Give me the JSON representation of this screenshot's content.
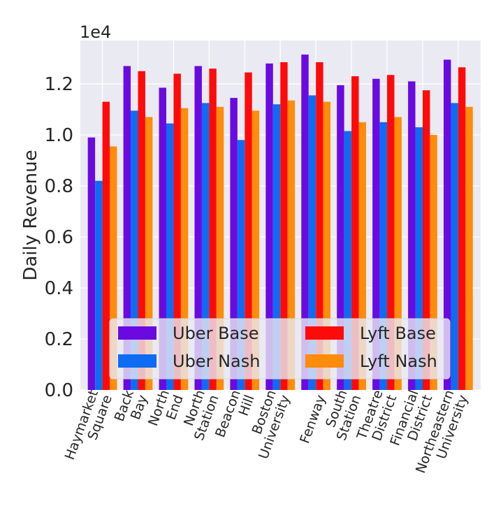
{
  "chart_data": {
    "type": "bar",
    "title": "",
    "xlabel": "",
    "ylabel": "Daily Revenue",
    "y_scale_label": "1e4",
    "ylim": [
      0,
      13700
    ],
    "yticks": [
      0,
      2000,
      4000,
      6000,
      8000,
      10000,
      12000
    ],
    "ytick_labels": [
      "0.0",
      "0.2",
      "0.4",
      "0.6",
      "0.8",
      "1.0",
      "1.2"
    ],
    "grid": true,
    "legend_position": "bottom-center",
    "categories": [
      [
        "Haymarket",
        "Square"
      ],
      [
        "Back",
        "Bay"
      ],
      [
        "North",
        "End"
      ],
      [
        "North",
        "Station"
      ],
      [
        "Beacon",
        "Hill"
      ],
      [
        "Boston",
        "University"
      ],
      [
        "Fenway"
      ],
      [
        "South",
        "Station"
      ],
      [
        "Theatre",
        "District"
      ],
      [
        "Financial",
        "District"
      ],
      [
        "Northeastern",
        "University"
      ]
    ],
    "series": [
      {
        "name": "Uber Base",
        "color": "#6a0ae0",
        "values": [
          9900,
          12700,
          11850,
          12700,
          11450,
          12800,
          13150,
          11950,
          12200,
          12100,
          12950
        ]
      },
      {
        "name": "Uber Nash",
        "color": "#0d6cf2",
        "values": [
          8200,
          10950,
          10450,
          11250,
          9800,
          11200,
          11550,
          10150,
          10500,
          10300,
          11250
        ]
      },
      {
        "name": "Lyft Base",
        "color": "#ff0a0a",
        "values": [
          11300,
          12500,
          12400,
          12600,
          12450,
          12850,
          12850,
          12300,
          12350,
          11750,
          12650
        ]
      },
      {
        "name": "Lyft Nash",
        "color": "#ff8c0a",
        "values": [
          9550,
          10700,
          11050,
          11100,
          10950,
          11350,
          11300,
          10500,
          10700,
          10000,
          11100
        ]
      }
    ]
  }
}
